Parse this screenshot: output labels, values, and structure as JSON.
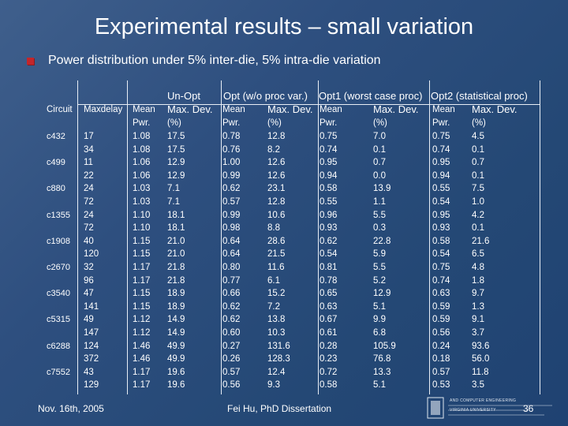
{
  "title": "Experimental results – small variation",
  "subtitle": "Power distribution under 5% inter-die, 5% intra-die variation",
  "table": {
    "group_headers": [
      "Un-Opt",
      "Opt (w/o proc var.)",
      "Opt1 (worst case proc)",
      "Opt2 (statistical proc)"
    ],
    "col_headers": {
      "circuit": "Circuit",
      "maxdelay": "Maxdelay",
      "mean1": "Mean",
      "mean2": "Pwr.",
      "dev1": "Max. Dev.",
      "dev2": "(%)"
    },
    "rows": [
      {
        "circuit": "c432",
        "delay": "17",
        "v": [
          "1.08",
          "17.5",
          "0.78",
          "12.8",
          "0.75",
          "7.0",
          "0.75",
          "4.5"
        ]
      },
      {
        "circuit": "",
        "delay": "34",
        "v": [
          "1.08",
          "17.5",
          "0.76",
          "8.2",
          "0.74",
          "0.1",
          "0.74",
          "0.1"
        ]
      },
      {
        "circuit": "c499",
        "delay": "11",
        "v": [
          "1.06",
          "12.9",
          "1.00",
          "12.6",
          "0.95",
          "0.7",
          "0.95",
          "0.7"
        ]
      },
      {
        "circuit": "",
        "delay": "22",
        "v": [
          "1.06",
          "12.9",
          "0.99",
          "12.6",
          "0.94",
          "0.0",
          "0.94",
          "0.1"
        ]
      },
      {
        "circuit": "c880",
        "delay": "24",
        "v": [
          "1.03",
          "7.1",
          "0.62",
          "23.1",
          "0.58",
          "13.9",
          "0.55",
          "7.5"
        ]
      },
      {
        "circuit": "",
        "delay": "72",
        "v": [
          "1.03",
          "7.1",
          "0.57",
          "12.8",
          "0.55",
          "1.1",
          "0.54",
          "1.0"
        ]
      },
      {
        "circuit": "c1355",
        "delay": "24",
        "v": [
          "1.10",
          "18.1",
          "0.99",
          "10.6",
          "0.96",
          "5.5",
          "0.95",
          "4.2"
        ]
      },
      {
        "circuit": "",
        "delay": "72",
        "v": [
          "1.10",
          "18.1",
          "0.98",
          "8.8",
          "0.93",
          "0.3",
          "0.93",
          "0.1"
        ]
      },
      {
        "circuit": "c1908",
        "delay": "40",
        "v": [
          "1.15",
          "21.0",
          "0.64",
          "28.6",
          "0.62",
          "22.8",
          "0.58",
          "21.6"
        ]
      },
      {
        "circuit": "",
        "delay": "120",
        "v": [
          "1.15",
          "21.0",
          "0.64",
          "21.5",
          "0.54",
          "5.9",
          "0.54",
          "6.5"
        ]
      },
      {
        "circuit": "c2670",
        "delay": "32",
        "v": [
          "1.17",
          "21.8",
          "0.80",
          "11.6",
          "0.81",
          "5.5",
          "0.75",
          "4.8"
        ]
      },
      {
        "circuit": "",
        "delay": "96",
        "v": [
          "1.17",
          "21.8",
          "0.77",
          "6.1",
          "0.78",
          "5.2",
          "0.74",
          "1.8"
        ]
      },
      {
        "circuit": "c3540",
        "delay": "47",
        "v": [
          "1.15",
          "18.9",
          "0.66",
          "15.2",
          "0.65",
          "12.9",
          "0.63",
          "9.7"
        ]
      },
      {
        "circuit": "",
        "delay": "141",
        "v": [
          "1.15",
          "18.9",
          "0.62",
          "7.2",
          "0.63",
          "5.1",
          "0.59",
          "1.3"
        ]
      },
      {
        "circuit": "c5315",
        "delay": "49",
        "v": [
          "1.12",
          "14.9",
          "0.62",
          "13.8",
          "0.67",
          "9.9",
          "0.59",
          "9.1"
        ]
      },
      {
        "circuit": "",
        "delay": "147",
        "v": [
          "1.12",
          "14.9",
          "0.60",
          "10.3",
          "0.61",
          "6.8",
          "0.56",
          "3.7"
        ]
      },
      {
        "circuit": "c6288",
        "delay": "124",
        "v": [
          "1.46",
          "49.9",
          "0.27",
          "131.6",
          "0.28",
          "105.9",
          "0.24",
          "93.6"
        ]
      },
      {
        "circuit": "",
        "delay": "372",
        "v": [
          "1.46",
          "49.9",
          "0.26",
          "128.3",
          "0.23",
          "76.8",
          "0.18",
          "56.0"
        ]
      },
      {
        "circuit": "c7552",
        "delay": "43",
        "v": [
          "1.17",
          "19.6",
          "0.57",
          "12.4",
          "0.72",
          "13.3",
          "0.57",
          "11.8"
        ]
      },
      {
        "circuit": "",
        "delay": "129",
        "v": [
          "1.17",
          "19.6",
          "0.56",
          "9.3",
          "0.58",
          "5.1",
          "0.53",
          "3.5"
        ]
      }
    ]
  },
  "footer": {
    "date": "Nov. 16th, 2005",
    "author": "Fei Hu, PhD Dissertation",
    "page": "36",
    "logo_line1": "AND COMPUTER ENGINEERING",
    "logo_line2": "VIRGINIA UNIVERSITY"
  },
  "colors": {
    "background": "#2e4f7f",
    "bullet": "#c3262b",
    "text": "#ffffff"
  }
}
